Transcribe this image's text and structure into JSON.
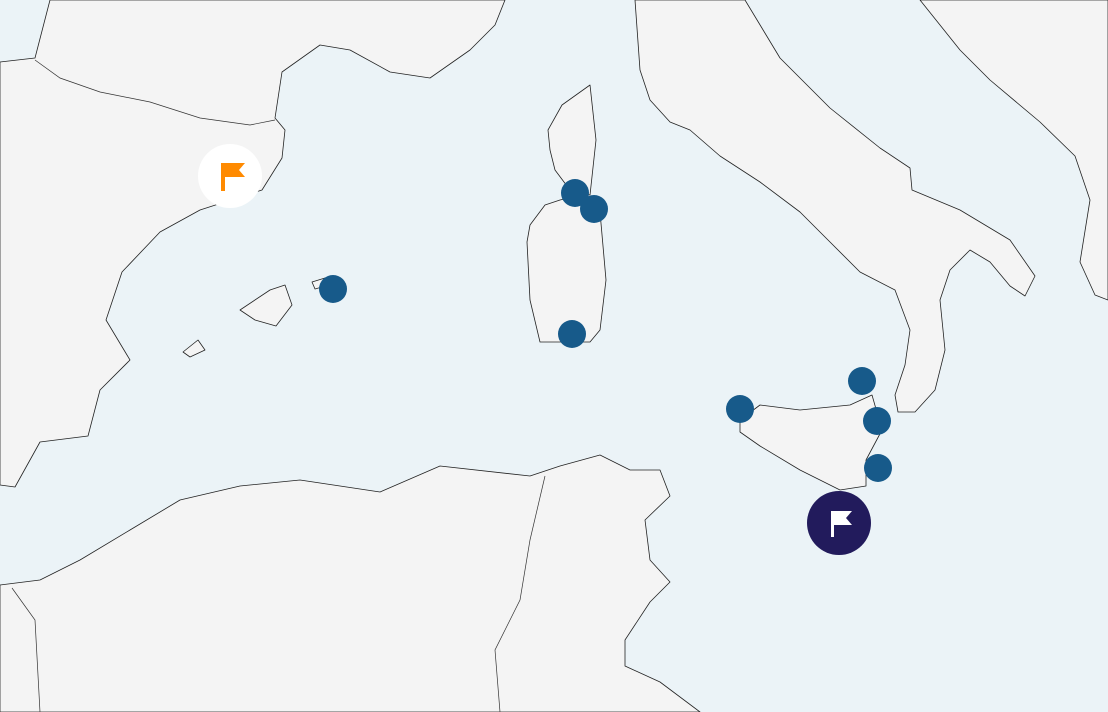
{
  "map": {
    "sea_color": "#ebf3f7",
    "land_color": "#f4f4f4",
    "coast_color": "#222222"
  },
  "markers": {
    "point_color": "#175a8a",
    "point_icon": "location-dot-icon",
    "start_flag": {
      "icon": "flag-icon",
      "background": "#ffffff",
      "color": "#ff8a00"
    },
    "end_flag": {
      "icon": "flag-icon",
      "background": "#221b5c",
      "color": "#ffffff"
    }
  }
}
